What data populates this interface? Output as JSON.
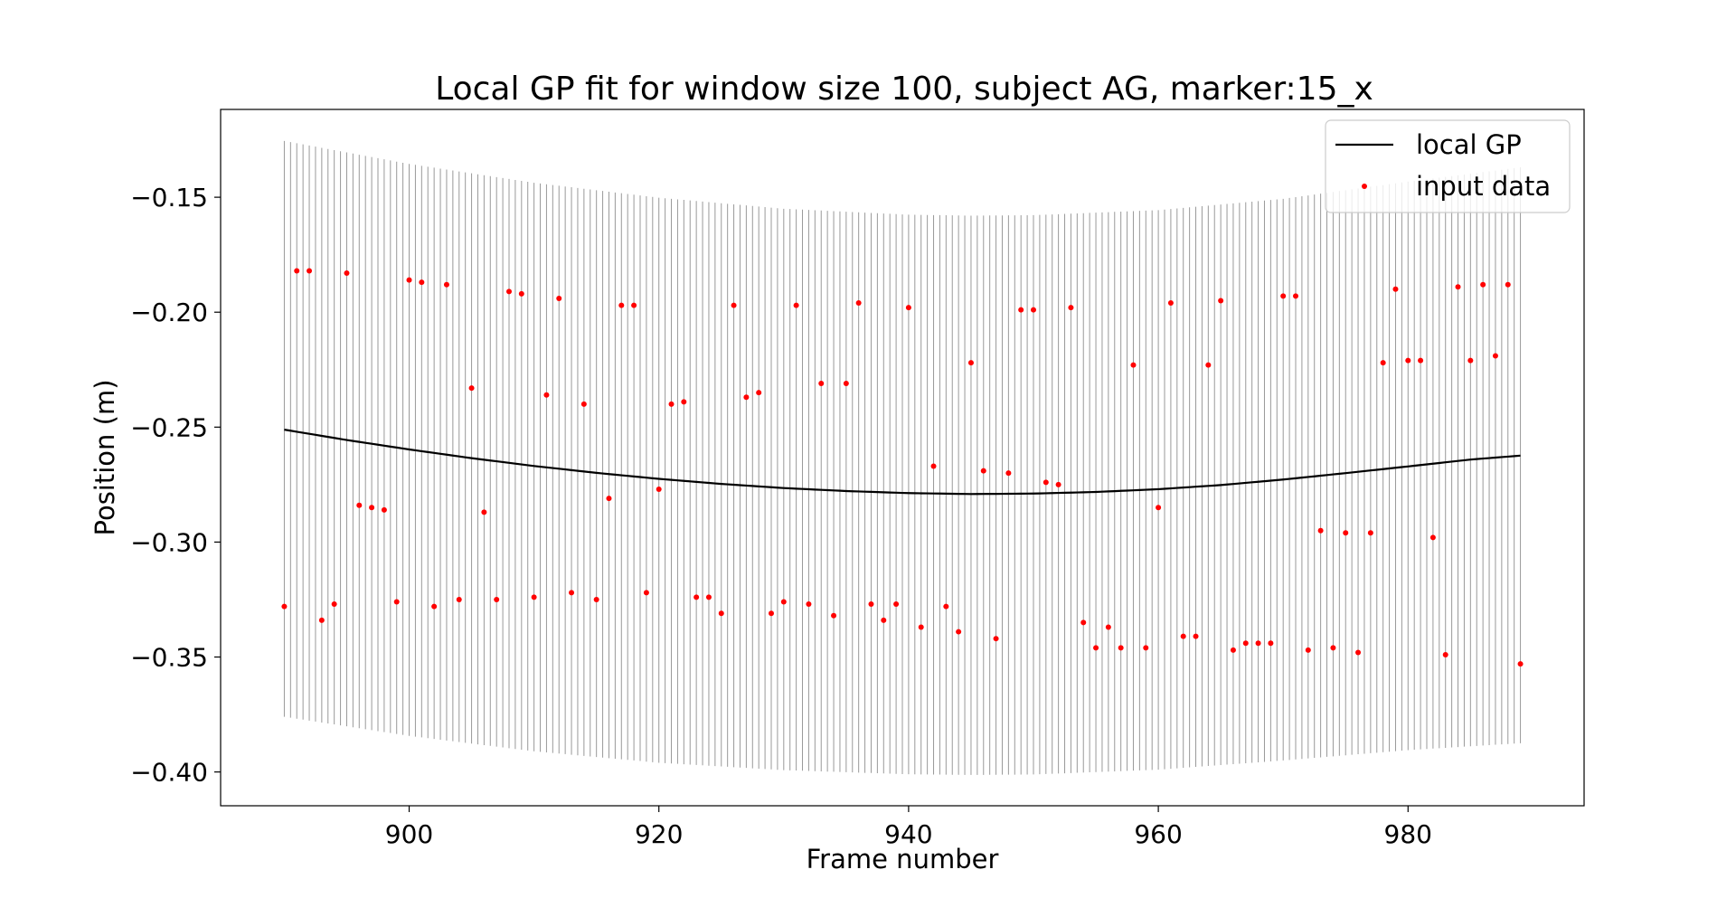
{
  "chart_data": {
    "type": "line",
    "title": "Local GP fit for window size 100, subject AG, marker:15_x",
    "xlabel": "Frame number",
    "ylabel": "Position (m)",
    "xlim": [
      884.9,
      994.1
    ],
    "ylim": [
      -0.4147,
      -0.1118
    ],
    "x_ticks": [
      900,
      920,
      940,
      960,
      980
    ],
    "y_ticks": [
      -0.15,
      -0.2,
      -0.25,
      -0.3,
      -0.35,
      -0.4
    ],
    "x_tick_labels": [
      "900",
      "920",
      "940",
      "960",
      "980"
    ],
    "y_tick_labels": [
      "−0.15",
      "−0.20",
      "−0.25",
      "−0.30",
      "−0.35",
      "−0.40"
    ],
    "grid": false,
    "legend_placement": "upper right",
    "legend": [
      "local GP",
      "input data"
    ],
    "colors": {
      "gp_line": "#000000",
      "input_data": "#ff0000",
      "uncertainty": "#999999"
    },
    "series": [
      {
        "name": "local GP",
        "kind": "line",
        "x": [
          890,
          895,
          900,
          905,
          910,
          915,
          920,
          925,
          930,
          935,
          940,
          945,
          950,
          955,
          960,
          965,
          970,
          975,
          980,
          985,
          989
        ],
        "y": [
          -0.2511,
          -0.2556,
          -0.2597,
          -0.2635,
          -0.2669,
          -0.2699,
          -0.2725,
          -0.2747,
          -0.2765,
          -0.2778,
          -0.2787,
          -0.2791,
          -0.2789,
          -0.2782,
          -0.277,
          -0.2752,
          -0.2728,
          -0.27,
          -0.2671,
          -0.2641,
          -0.2624
        ]
      },
      {
        "name": "input data",
        "kind": "scatter",
        "x": [
          890,
          891,
          892,
          893,
          894,
          895,
          896,
          897,
          898,
          899,
          900,
          901,
          902,
          903,
          904,
          905,
          906,
          907,
          908,
          909,
          910,
          911,
          912,
          913,
          914,
          915,
          916,
          917,
          918,
          919,
          920,
          921,
          922,
          923,
          924,
          925,
          926,
          927,
          928,
          929,
          930,
          931,
          932,
          933,
          934,
          935,
          936,
          937,
          938,
          939,
          940,
          941,
          942,
          943,
          944,
          945,
          946,
          947,
          948,
          949,
          950,
          951,
          952,
          953,
          954,
          955,
          956,
          957,
          958,
          959,
          960,
          961,
          962,
          963,
          964,
          965,
          966,
          967,
          968,
          969,
          970,
          971,
          972,
          973,
          974,
          975,
          976,
          977,
          978,
          979,
          980,
          981,
          982,
          983,
          984,
          985,
          986,
          987,
          988,
          989
        ],
        "y": [
          -0.328,
          -0.182,
          -0.182,
          -0.334,
          -0.327,
          -0.183,
          -0.284,
          -0.285,
          -0.286,
          -0.326,
          -0.186,
          -0.187,
          -0.328,
          -0.188,
          -0.325,
          -0.233,
          -0.287,
          -0.325,
          -0.191,
          -0.192,
          -0.324,
          -0.236,
          -0.194,
          -0.322,
          -0.24,
          -0.325,
          -0.281,
          -0.197,
          -0.197,
          -0.322,
          -0.277,
          -0.24,
          -0.239,
          -0.324,
          -0.324,
          -0.331,
          -0.197,
          -0.237,
          -0.235,
          -0.331,
          -0.326,
          -0.197,
          -0.327,
          -0.231,
          -0.332,
          -0.231,
          -0.196,
          -0.327,
          -0.334,
          -0.327,
          -0.198,
          -0.337,
          -0.267,
          -0.328,
          -0.339,
          -0.222,
          -0.269,
          -0.342,
          -0.27,
          -0.199,
          -0.199,
          -0.274,
          -0.275,
          -0.198,
          -0.335,
          -0.346,
          -0.337,
          -0.346,
          -0.223,
          -0.346,
          -0.285,
          -0.196,
          -0.341,
          -0.341,
          -0.223,
          -0.195,
          -0.347,
          -0.344,
          -0.344,
          -0.344,
          -0.193,
          -0.193,
          -0.347,
          -0.295,
          -0.346,
          -0.296,
          -0.348,
          -0.296,
          -0.222,
          -0.19,
          -0.221,
          -0.221,
          -0.298,
          -0.349,
          -0.189,
          -0.221,
          -0.188,
          -0.219,
          -0.188,
          -0.353
        ]
      },
      {
        "name": "uncertainty",
        "kind": "errorbars",
        "x_start": 890,
        "x_end": 989,
        "step": 0.5,
        "upper": {
          "x": [
            890,
            900,
            910,
            920,
            930,
            940,
            945,
            950,
            960,
            970,
            980,
            989
          ],
          "y": [
            -0.1255,
            -0.1355,
            -0.1437,
            -0.1502,
            -0.155,
            -0.1576,
            -0.158,
            -0.1578,
            -0.1556,
            -0.1507,
            -0.1432,
            -0.137
          ]
        },
        "lower": {
          "x": [
            890,
            900,
            910,
            920,
            930,
            940,
            945,
            950,
            960,
            970,
            980,
            989
          ],
          "y": [
            -0.376,
            -0.3843,
            -0.391,
            -0.396,
            -0.3992,
            -0.401,
            -0.4013,
            -0.4011,
            -0.399,
            -0.395,
            -0.3905,
            -0.3875
          ]
        }
      }
    ]
  }
}
